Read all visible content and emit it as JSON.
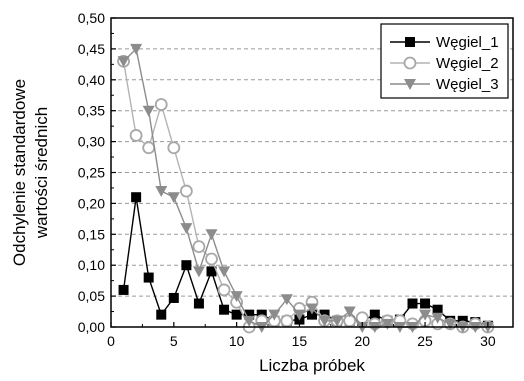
{
  "chart_data": {
    "type": "line",
    "title": "",
    "xlabel": "Liczba próbek",
    "ylabel_lines": [
      "Odchylenie standardowe",
      "wartości średnich"
    ],
    "xlim": [
      0,
      32
    ],
    "ylim": [
      0,
      0.5
    ],
    "x_ticks": [
      0,
      5,
      10,
      15,
      20,
      25,
      30
    ],
    "x_tick_labels": [
      "0",
      "5",
      "10",
      "15",
      "20",
      "25",
      "30"
    ],
    "y_ticks": [
      0,
      0.05,
      0.1,
      0.15,
      0.2,
      0.25,
      0.3,
      0.35,
      0.4,
      0.45,
      0.5
    ],
    "y_tick_labels": [
      "0,00",
      "0,05",
      "0,10",
      "0,15",
      "0,20",
      "0,25",
      "0,30",
      "0,35",
      "0,40",
      "0,45",
      "0,50"
    ],
    "grid": "horizontal dashed",
    "legend_position": "top-right",
    "series": [
      {
        "name": "Węgiel_1",
        "marker": "square-filled",
        "color": "#000000",
        "line_color": "#000000",
        "x": [
          1,
          2,
          3,
          4,
          5,
          6,
          7,
          8,
          9,
          10,
          11,
          12,
          13,
          14,
          15,
          16,
          17,
          18,
          19,
          20,
          21,
          22,
          23,
          24,
          25,
          26,
          27,
          28,
          29,
          30
        ],
        "y": [
          0.06,
          0.21,
          0.08,
          0.02,
          0.047,
          0.1,
          0.038,
          0.09,
          0.028,
          0.02,
          0.02,
          0.02,
          0.01,
          0.01,
          0.012,
          0.02,
          0.02,
          0.01,
          0.01,
          0.01,
          0.02,
          0.01,
          0.012,
          0.038,
          0.038,
          0.028,
          0.01,
          0.01,
          0.008,
          0.002
        ]
      },
      {
        "name": "Węgiel_2",
        "marker": "circle-open",
        "color": "#a8a8a8",
        "line_color": "#b4b4b4",
        "x": [
          1,
          2,
          3,
          4,
          5,
          6,
          7,
          8,
          9,
          10,
          11,
          12,
          13,
          14,
          15,
          16,
          17,
          18,
          19,
          20,
          21,
          22,
          23,
          24,
          25,
          26,
          27,
          28,
          29,
          30
        ],
        "y": [
          0.43,
          0.31,
          0.29,
          0.36,
          0.29,
          0.22,
          0.13,
          0.11,
          0.06,
          0.04,
          0.0,
          0.01,
          0.01,
          0.01,
          0.03,
          0.04,
          0.01,
          0.01,
          0.01,
          0.015,
          0.005,
          0.01,
          0.01,
          0.005,
          0.01,
          0.005,
          0.005,
          0.0,
          0.005,
          0.0
        ]
      },
      {
        "name": "Węgiel_3",
        "marker": "triangle-down-filled",
        "color": "#8c8c8c",
        "line_color": "#8c8c8c",
        "x": [
          1,
          2,
          3,
          4,
          5,
          6,
          7,
          8,
          9,
          10,
          11,
          12,
          13,
          14,
          15,
          16,
          17,
          18,
          19,
          20,
          21,
          22,
          23,
          24,
          25,
          26,
          27,
          28,
          29,
          30
        ],
        "y": [
          0.43,
          0.45,
          0.35,
          0.22,
          0.21,
          0.16,
          0.09,
          0.15,
          0.09,
          0.05,
          0.01,
          0.0,
          0.02,
          0.045,
          0.02,
          0.03,
          0.01,
          0.01,
          0.025,
          0.0,
          0.0,
          0.005,
          0.0,
          0.0,
          0.02,
          0.015,
          0.005,
          0.0,
          0.0,
          0.0
        ]
      }
    ]
  }
}
